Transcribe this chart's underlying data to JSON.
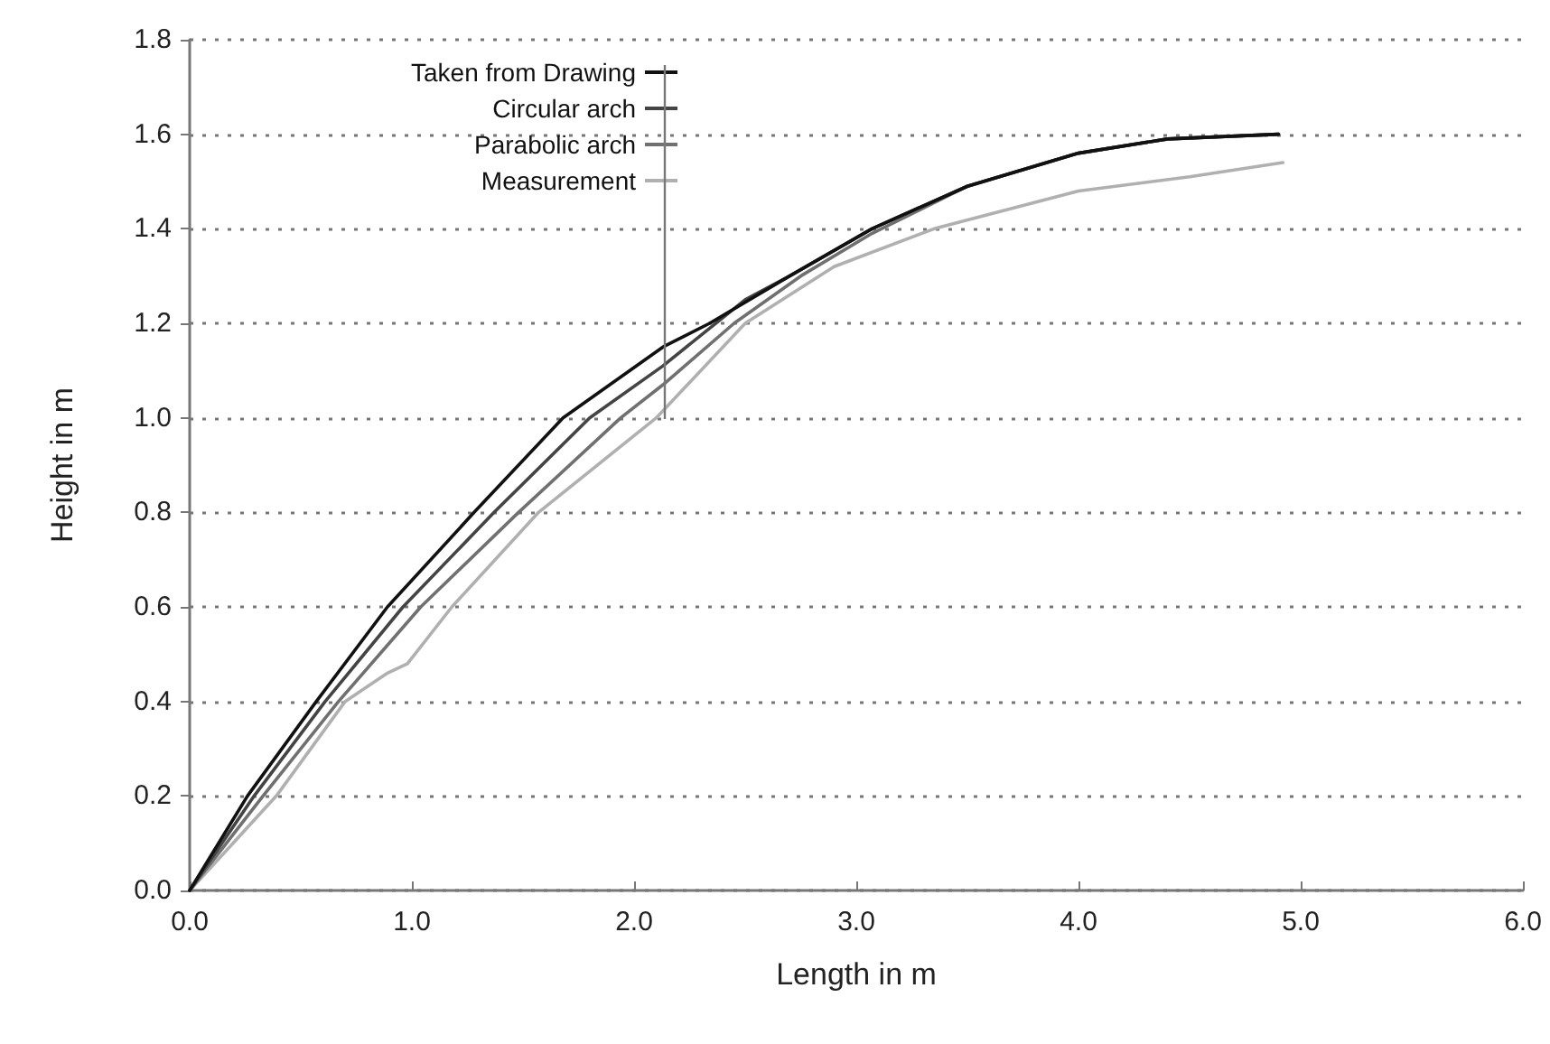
{
  "chart_data": {
    "type": "line",
    "xlabel": "Length in m",
    "ylabel": "Height in m",
    "xlim": [
      0,
      6
    ],
    "ylim": [
      0,
      1.8
    ],
    "xticks": [
      {
        "value": 0,
        "label": "0.0"
      },
      {
        "value": 1,
        "label": "1.0"
      },
      {
        "value": 2,
        "label": "2.0"
      },
      {
        "value": 3,
        "label": "3.0"
      },
      {
        "value": 4,
        "label": "4.0"
      },
      {
        "value": 5,
        "label": "5.0"
      },
      {
        "value": 6,
        "label": "6.0"
      }
    ],
    "yticks": [
      {
        "value": 0,
        "label": "0.0"
      },
      {
        "value": 0.2,
        "label": "0.2"
      },
      {
        "value": 0.4,
        "label": "0.4"
      },
      {
        "value": 0.6,
        "label": "0.6"
      },
      {
        "value": 0.8,
        "label": "0.8"
      },
      {
        "value": 1,
        "label": "1.0"
      },
      {
        "value": 1.2,
        "label": "1.2"
      },
      {
        "value": 1.4,
        "label": "1.4"
      },
      {
        "value": 1.6,
        "label": "1.6"
      },
      {
        "value": 1.8,
        "label": "1.8"
      }
    ],
    "grid": "y",
    "legend": "top left",
    "marker": "none",
    "line_style": "solid",
    "series": [
      {
        "name": "Taken from Drawing",
        "color": "#111111",
        "x": [
          0,
          0.26,
          0.57,
          0.89,
          1.28,
          1.68,
          2.13,
          2.34,
          2.7,
          3.07,
          3.5,
          4.0,
          4.4,
          4.9
        ],
        "values": [
          0,
          0.2,
          0.4,
          0.6,
          0.8,
          1.0,
          1.15,
          1.2,
          1.3,
          1.4,
          1.49,
          1.56,
          1.59,
          1.6
        ]
      },
      {
        "name": "Circular arch",
        "color": "#444444",
        "x": [
          0,
          0.29,
          0.61,
          0.96,
          1.37,
          1.8,
          2.13,
          2.5,
          2.7,
          3.07,
          3.5,
          4.0,
          4.4,
          4.9
        ],
        "values": [
          0,
          0.2,
          0.4,
          0.6,
          0.8,
          1.0,
          1.11,
          1.25,
          1.3,
          1.4,
          1.49,
          1.56,
          1.59,
          1.6
        ]
      },
      {
        "name": "Parabolic arch",
        "color": "#707070",
        "x": [
          0,
          0.33,
          0.67,
          1.04,
          1.48,
          1.94,
          2.13,
          2.45,
          2.75,
          3.07,
          3.5,
          4.0,
          4.4,
          4.9
        ],
        "values": [
          0,
          0.2,
          0.4,
          0.6,
          0.8,
          1.0,
          1.07,
          1.2,
          1.3,
          1.39,
          1.49,
          1.56,
          1.59,
          1.6
        ]
      },
      {
        "name": "Measurement",
        "color": "#b0b0b0",
        "x": [
          0,
          0.39,
          0.7,
          0.89,
          0.98,
          1.18,
          1.57,
          2.1,
          2.5,
          2.9,
          3.35,
          4.0,
          4.5,
          4.92
        ],
        "values": [
          0,
          0.2,
          0.4,
          0.46,
          0.48,
          0.6,
          0.8,
          1.0,
          1.2,
          1.32,
          1.4,
          1.48,
          1.51,
          1.54
        ]
      }
    ]
  }
}
